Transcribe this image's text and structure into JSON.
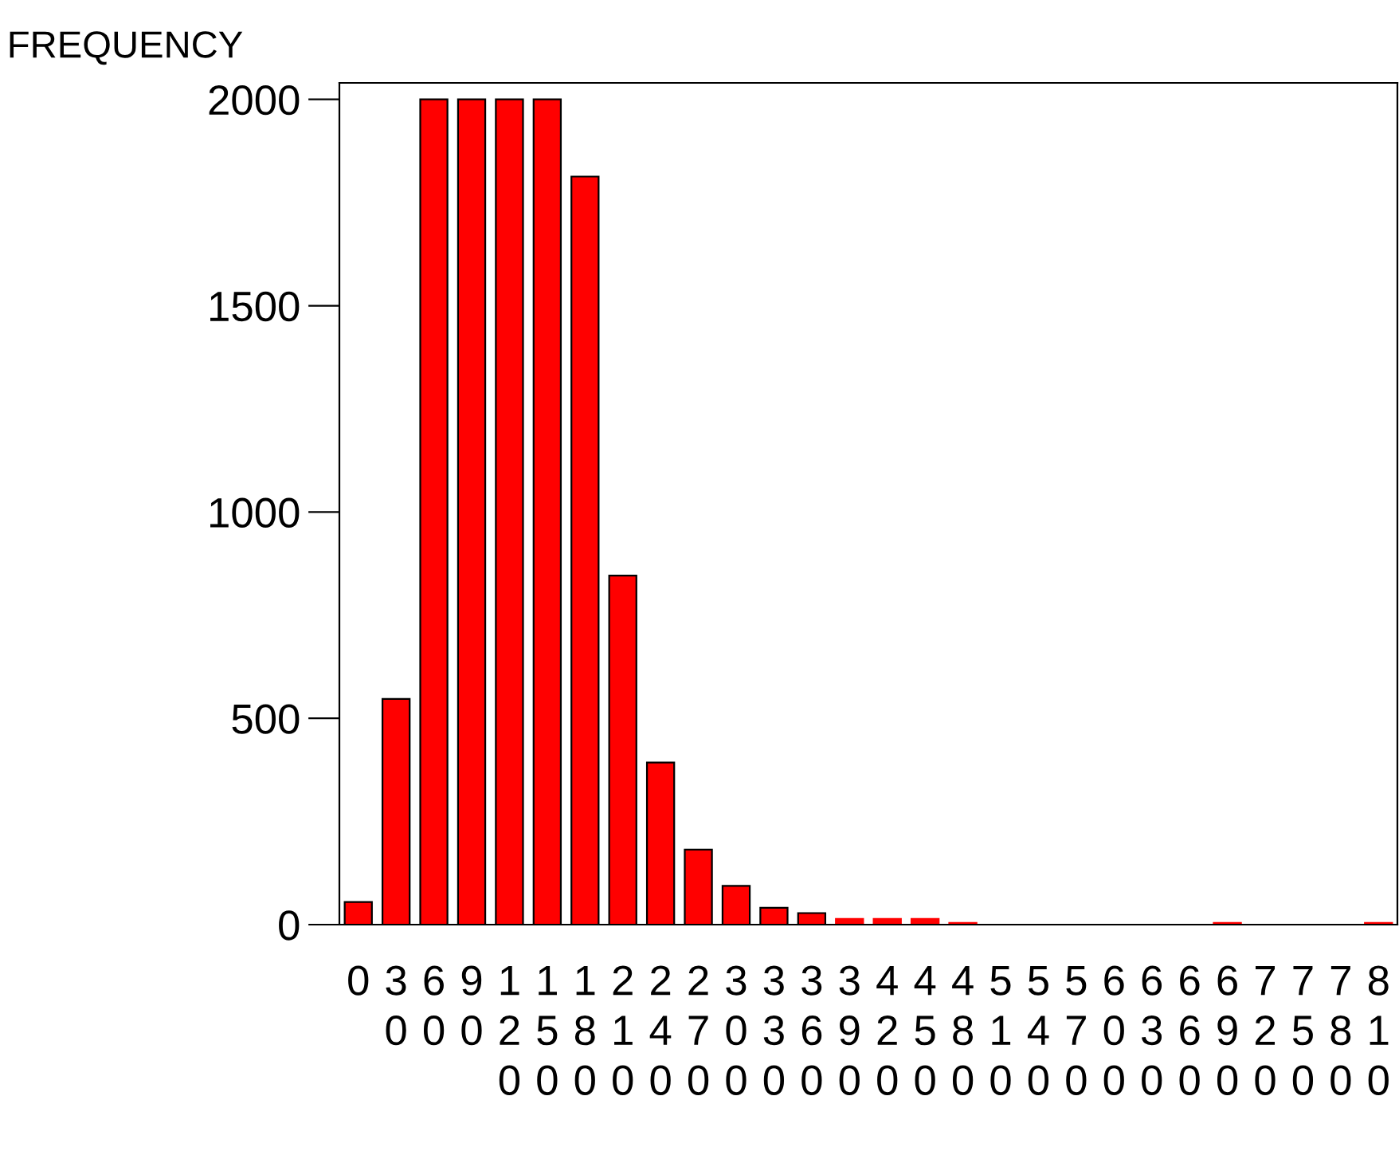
{
  "chart_data": {
    "type": "bar",
    "ylabel": "FREQUENCY",
    "categories": [
      "0",
      "30",
      "60",
      "90",
      "120",
      "150",
      "180",
      "210",
      "240",
      "270",
      "300",
      "330",
      "360",
      "390",
      "420",
      "450",
      "480",
      "510",
      "540",
      "570",
      "600",
      "630",
      "660",
      "690",
      "720",
      "750",
      "780",
      "810"
    ],
    "values": [
      55,
      547,
      2000,
      2000,
      2000,
      2000,
      1813,
      846,
      393,
      182,
      94,
      41,
      28,
      14,
      14,
      14,
      4,
      0,
      0,
      0,
      0,
      0,
      0,
      4,
      0,
      0,
      0,
      4
    ],
    "color": "#ff0000",
    "ylim": [
      0,
      2040
    ],
    "yticks": [
      0,
      500,
      1000,
      1500,
      2000
    ],
    "grid": false
  }
}
